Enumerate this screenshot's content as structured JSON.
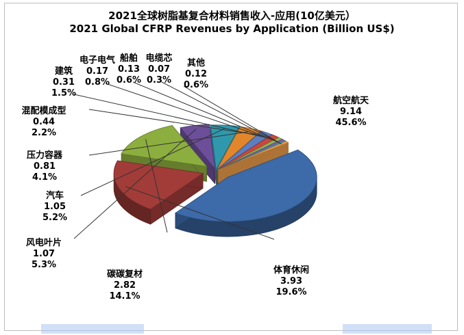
{
  "chart_data": {
    "type": "pie",
    "title": "2021全球树脂基复合材料销售收入-应用(10亿美元）",
    "subtitle": "2021 Global CFRP Revenues by Application (Billion US$)",
    "slices": [
      {
        "name": "航空航天",
        "value": 9.14,
        "percent": "45.6%",
        "color": "#3d6aa8"
      },
      {
        "name": "体育休闲",
        "value": 3.93,
        "percent": "19.6%",
        "color": "#a23c39"
      },
      {
        "name": "碳碳复材",
        "value": 2.82,
        "percent": "14.1%",
        "color": "#8cae3f"
      },
      {
        "name": "风电叶片",
        "value": 1.07,
        "percent": "5.3%",
        "color": "#6c4e99"
      },
      {
        "name": "汽车",
        "value": 1.05,
        "percent": "5.2%",
        "color": "#2f98ac"
      },
      {
        "name": "压力容器",
        "value": 0.81,
        "percent": "4.1%",
        "color": "#e1862b"
      },
      {
        "name": "混配模成型",
        "value": 0.44,
        "percent": "2.2%",
        "color": "#5b7fc0"
      },
      {
        "name": "建筑",
        "value": 0.31,
        "percent": "1.5%",
        "color": "#c9473f"
      },
      {
        "name": "电子电气",
        "value": 0.17,
        "percent": "0.8%",
        "color": "#90b94a"
      },
      {
        "name": "船舶",
        "value": 0.13,
        "percent": "0.6%",
        "color": "#7d5fae"
      },
      {
        "name": "电缆芯",
        "value": 0.07,
        "percent": "0.3%",
        "color": "#3fb0c8"
      },
      {
        "name": "其他",
        "value": 0.12,
        "percent": "0.6%",
        "color": "#f0a04b"
      }
    ]
  }
}
